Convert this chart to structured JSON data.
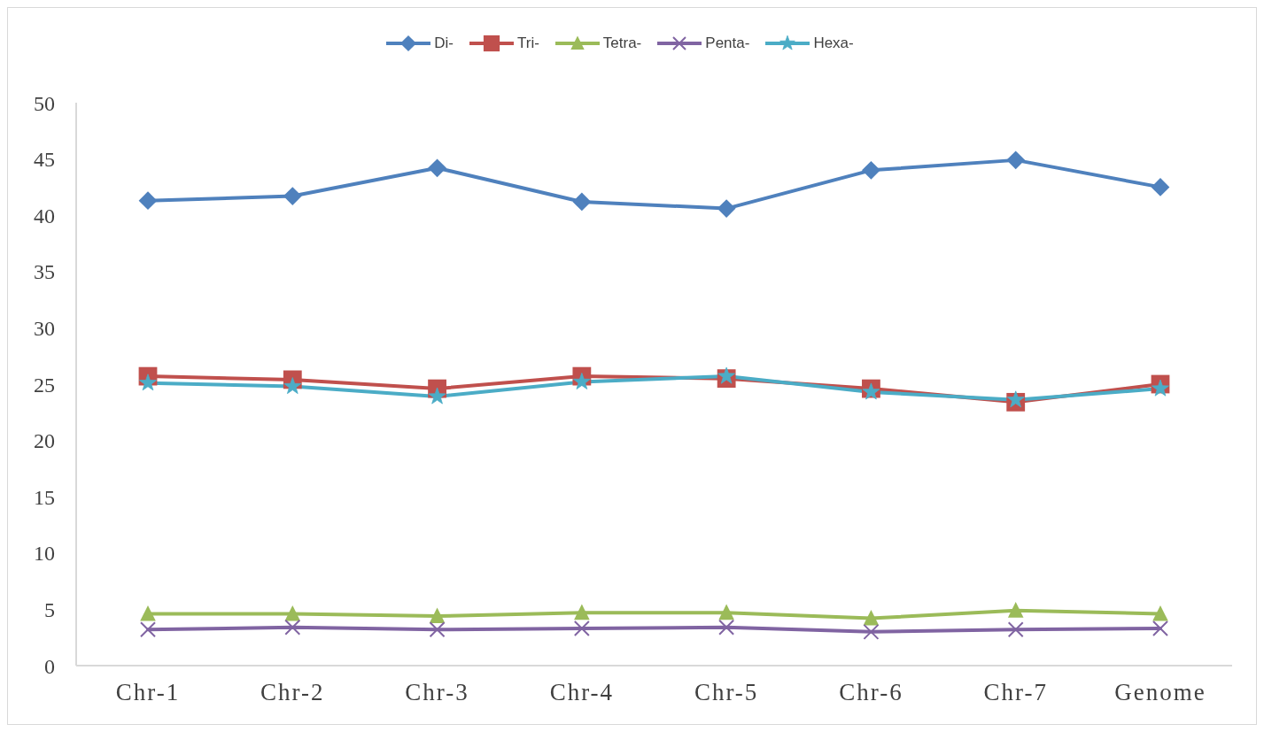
{
  "chart_data": {
    "type": "line",
    "categories": [
      "Chr-1",
      "Chr-2",
      "Chr-3",
      "Chr-4",
      "Chr-5",
      "Chr-6",
      "Chr-7",
      "Genome"
    ],
    "series": [
      {
        "name": "Di-",
        "color": "#4f81bd",
        "marker": "diamond",
        "values": [
          41.3,
          41.7,
          44.2,
          41.2,
          40.6,
          44.0,
          44.9,
          42.5
        ]
      },
      {
        "name": "Tri-",
        "color": "#c0504d",
        "marker": "square",
        "values": [
          25.7,
          25.4,
          24.6,
          25.7,
          25.5,
          24.6,
          23.4,
          25.0
        ]
      },
      {
        "name": "Tetra-",
        "color": "#9bbb59",
        "marker": "triangle",
        "values": [
          4.6,
          4.6,
          4.4,
          4.7,
          4.7,
          4.2,
          4.9,
          4.6
        ]
      },
      {
        "name": "Penta-",
        "color": "#8064a2",
        "marker": "cross",
        "values": [
          3.2,
          3.4,
          3.2,
          3.3,
          3.4,
          3.0,
          3.2,
          3.3
        ]
      },
      {
        "name": "Hexa-",
        "color": "#4bacc6",
        "marker": "star",
        "values": [
          25.1,
          24.8,
          23.9,
          25.2,
          25.7,
          24.3,
          23.6,
          24.6
        ]
      }
    ],
    "ylim": [
      0,
      50
    ],
    "yticks": [
      0,
      5,
      10,
      15,
      20,
      25,
      30,
      35,
      40,
      45,
      50
    ],
    "grid": false,
    "legend": "top",
    "line_style": "solid"
  }
}
